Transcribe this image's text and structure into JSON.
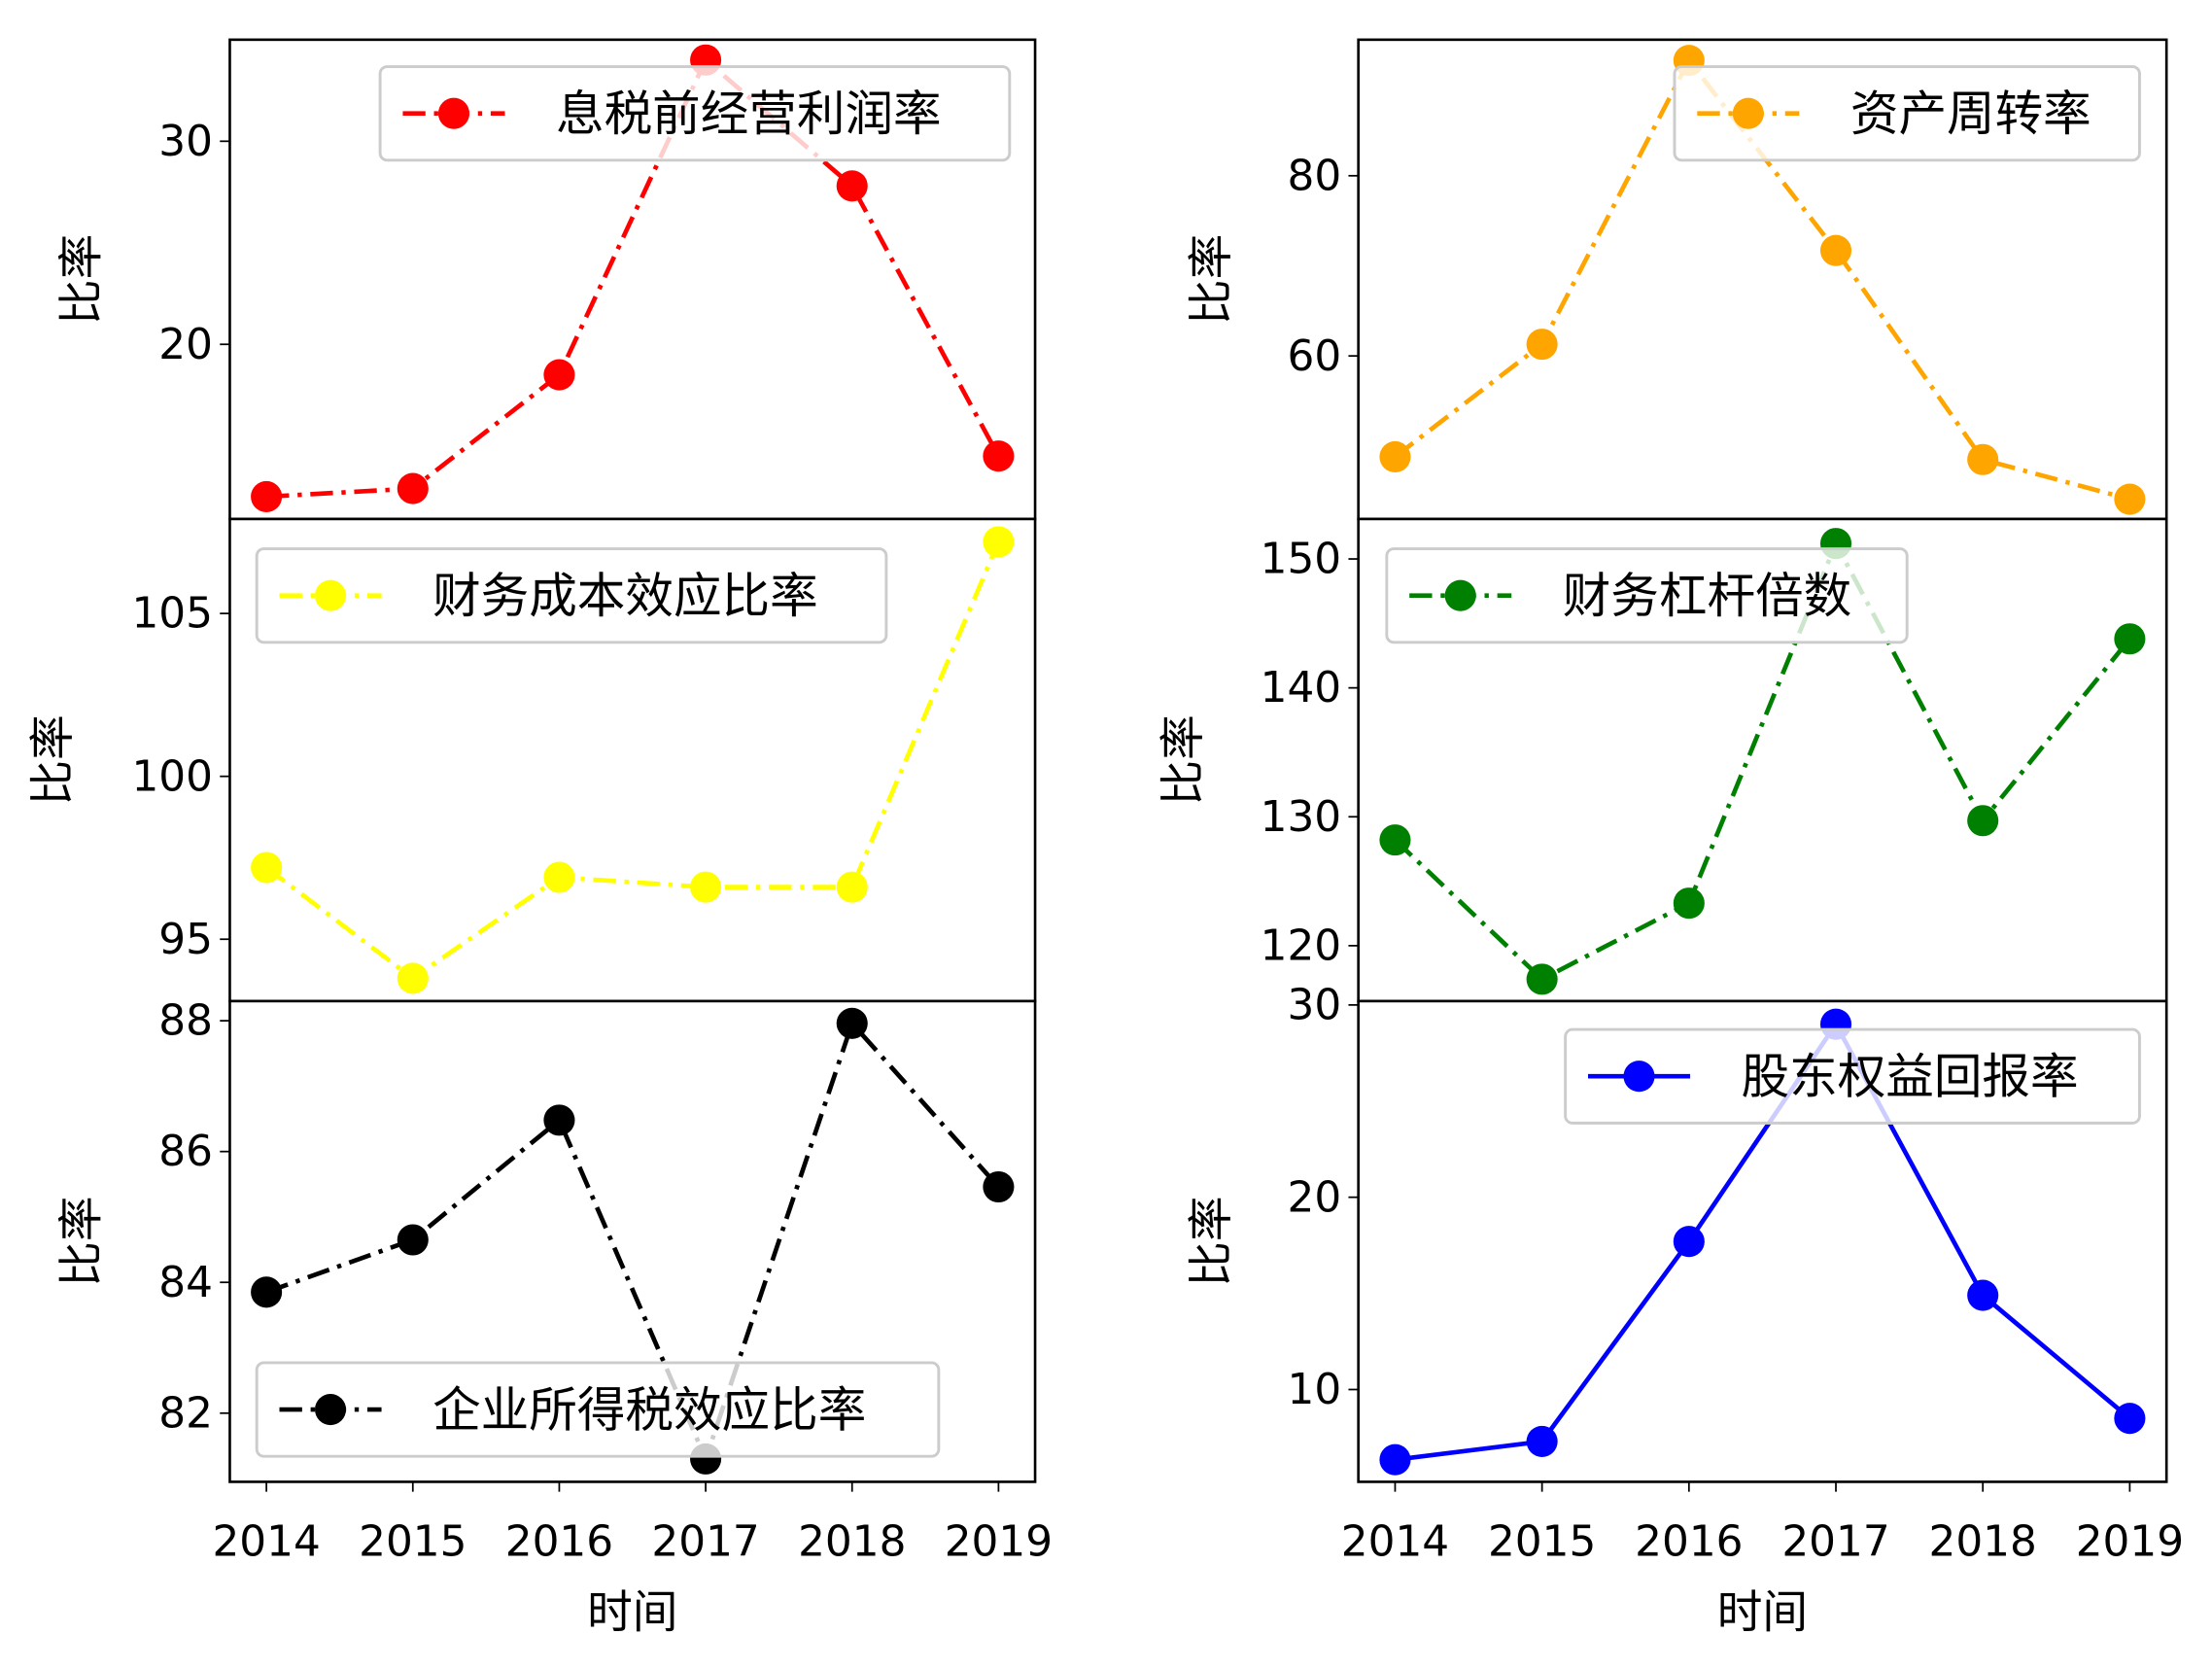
{
  "chart_data": [
    {
      "type": "line",
      "x": [
        2014,
        2015,
        2016,
        2017,
        2018,
        2019
      ],
      "series": [
        {
          "name": "息税前经营利润率",
          "values": [
            12.5,
            12.9,
            18.5,
            34.0,
            27.8,
            14.5
          ],
          "color": "#ff0000",
          "linestyle": "dashdot",
          "marker": "circle"
        }
      ],
      "ylabel": "比率",
      "xlabel": "",
      "yticks": [
        20,
        30
      ],
      "ylim": [
        11.4,
        35.0
      ],
      "xlim": [
        2013.75,
        2019.25
      ],
      "legend": "top-right",
      "grid": false
    },
    {
      "type": "line",
      "x": [
        2014,
        2015,
        2016,
        2017,
        2018,
        2019
      ],
      "series": [
        {
          "name": "资产周转率",
          "values": [
            48.8,
            61.3,
            92.8,
            71.7,
            48.5,
            44.1
          ],
          "color": "#ffa500",
          "linestyle": "dashdot",
          "marker": "circle"
        }
      ],
      "ylabel": "比率",
      "xlabel": "",
      "yticks": [
        60,
        80
      ],
      "ylim": [
        41.9,
        95.1
      ],
      "xlim": [
        2013.75,
        2019.25
      ],
      "legend": "top-right",
      "grid": false
    },
    {
      "type": "line",
      "x": [
        2014,
        2015,
        2016,
        2017,
        2018,
        2019
      ],
      "series": [
        {
          "name": "财务成本效应比率",
          "values": [
            97.2,
            93.8,
            96.9,
            96.6,
            96.6,
            107.2
          ],
          "color": "#ffff00",
          "linestyle": "dashdot",
          "marker": "circle"
        }
      ],
      "ylabel": "比率",
      "xlabel": "",
      "yticks": [
        95,
        100,
        105
      ],
      "ylim": [
        93.1,
        107.9
      ],
      "xlim": [
        2013.75,
        2019.25
      ],
      "legend": "top-left",
      "grid": false
    },
    {
      "type": "line",
      "x": [
        2014,
        2015,
        2016,
        2017,
        2018,
        2019
      ],
      "series": [
        {
          "name": "财务杠杆倍数",
          "values": [
            128.2,
            117.4,
            123.3,
            151.2,
            129.7,
            143.8
          ],
          "color": "#008000",
          "linestyle": "dashdot",
          "marker": "circle"
        }
      ],
      "ylabel": "比率",
      "xlabel": "",
      "yticks": [
        120,
        130,
        140,
        150
      ],
      "ylim": [
        115.7,
        153.1
      ],
      "xlim": [
        2013.75,
        2019.25
      ],
      "legend": "top-left",
      "grid": false
    },
    {
      "type": "line",
      "x": [
        2014,
        2015,
        2016,
        2017,
        2018,
        2019
      ],
      "series": [
        {
          "name": "企业所得税效应比率",
          "values": [
            83.85,
            84.65,
            86.48,
            81.3,
            87.96,
            85.46
          ],
          "color": "#000000",
          "linestyle": "dashdot",
          "marker": "circle"
        }
      ],
      "ylabel": "比率",
      "xlabel": "时间",
      "yticks": [
        82,
        84,
        86,
        88
      ],
      "ylim": [
        80.95,
        88.3
      ],
      "xlim": [
        2013.75,
        2019.25
      ],
      "legend": "bottom-left",
      "grid": false
    },
    {
      "type": "line",
      "x": [
        2014,
        2015,
        2016,
        2017,
        2018,
        2019
      ],
      "series": [
        {
          "name": "股东权益回报率",
          "values": [
            6.35,
            7.3,
            17.7,
            29.0,
            14.9,
            8.5
          ],
          "color": "#0000ff",
          "linestyle": "solid",
          "marker": "circle"
        }
      ],
      "ylabel": "比率",
      "xlabel": "时间",
      "yticks": [
        10,
        20,
        30
      ],
      "ylim": [
        5.2,
        30.2
      ],
      "xlim": [
        2013.75,
        2019.25
      ],
      "legend": "top-right",
      "grid": false
    }
  ]
}
